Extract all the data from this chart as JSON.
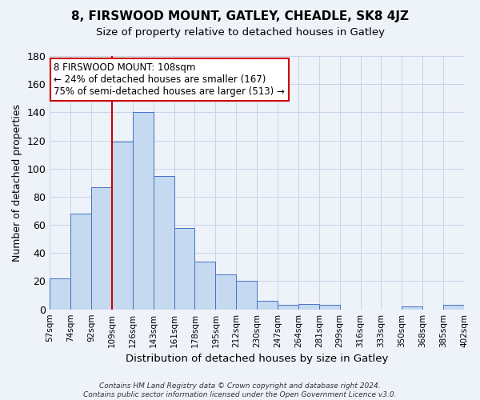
{
  "title": "8, FIRSWOOD MOUNT, GATLEY, CHEADLE, SK8 4JZ",
  "subtitle": "Size of property relative to detached houses in Gatley",
  "xlabel": "Distribution of detached houses by size in Gatley",
  "ylabel": "Number of detached properties",
  "bin_edges": [
    "57sqm",
    "74sqm",
    "92sqm",
    "109sqm",
    "126sqm",
    "143sqm",
    "161sqm",
    "178sqm",
    "195sqm",
    "212sqm",
    "230sqm",
    "247sqm",
    "264sqm",
    "281sqm",
    "299sqm",
    "316sqm",
    "333sqm",
    "350sqm",
    "368sqm",
    "385sqm",
    "402sqm"
  ],
  "bar_values": [
    22,
    68,
    87,
    119,
    140,
    95,
    58,
    34,
    25,
    20,
    6,
    3,
    4,
    3,
    0,
    0,
    0,
    2,
    0,
    3
  ],
  "bar_color": "#c5d9f0",
  "bar_edge_color": "#4472c4",
  "vline_x_index": 3,
  "vline_color": "#cc0000",
  "ylim": [
    0,
    180
  ],
  "yticks": [
    0,
    20,
    40,
    60,
    80,
    100,
    120,
    140,
    160,
    180
  ],
  "annotation_text": "8 FIRSWOOD MOUNT: 108sqm\n← 24% of detached houses are smaller (167)\n75% of semi-detached houses are larger (513) →",
  "annotation_box_color": "#ffffff",
  "annotation_box_edge": "#cc0000",
  "footer_text": "Contains HM Land Registry data © Crown copyright and database right 2024.\nContains public sector information licensed under the Open Government Licence v3.0.",
  "background_color": "#eef2f9"
}
